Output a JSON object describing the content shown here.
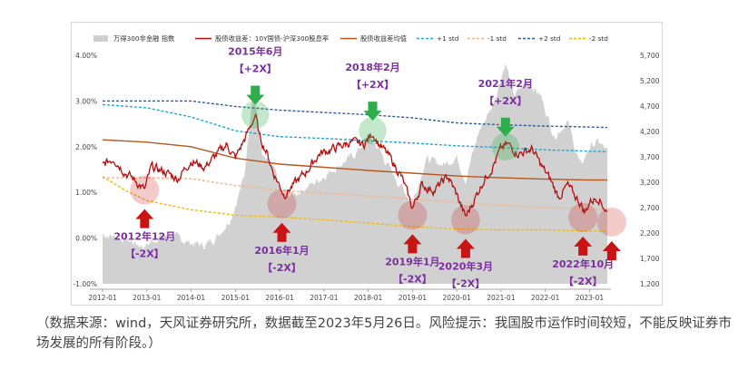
{
  "caption": "（数据来源：wind，天风证券研究所，数据截至2023年5月26日。风险提示：我国股市运作时间较短，不能反映证券市场发展的所有阶段。）",
  "colors": {
    "index_area": "#cfcfcf",
    "spread": "#b01010",
    "mean": "#b4581f",
    "plus1": "#1aa7d8",
    "minus1": "#f2b58a",
    "plus2": "#2a5f98",
    "minus2": "#f5b800",
    "annotation_text": "#7b2f9e",
    "high_marker": "#2eae4a",
    "low_marker": "#c81414"
  },
  "chart_data": {
    "type": "line",
    "legend": [
      {
        "key": "index",
        "label": "万得300非金融 指数",
        "style": "area"
      },
      {
        "key": "spread",
        "label": "股债收益差：10Y国债-沪深300股息率",
        "style": "line"
      },
      {
        "key": "mean",
        "label": "股债收益差均值",
        "style": "line"
      },
      {
        "key": "plus1",
        "label": "+1 std",
        "style": "dashed"
      },
      {
        "key": "minus1",
        "label": "-1 std",
        "style": "dashed"
      },
      {
        "key": "plus2",
        "label": "+2 std",
        "style": "dashed"
      },
      {
        "key": "minus2",
        "label": "-2 std",
        "style": "dashed"
      }
    ],
    "x_ticks": [
      "2012-01",
      "2013-01",
      "2014-01",
      "2015-01",
      "2016-01",
      "2017-01",
      "2018-01",
      "2019-01",
      "2020-01",
      "2021-01",
      "2022-01",
      "2023-01"
    ],
    "x_range": [
      "2012-01",
      "2023-05"
    ],
    "y_left": {
      "ticks": [
        "4.00%",
        "3.00%",
        "2.00%",
        "1.00%",
        "0.00%",
        "-1.00%"
      ],
      "range": [
        -1.0,
        4.0
      ]
    },
    "y_right": {
      "ticks": [
        "5,700",
        "5,200",
        "4,700",
        "4,200",
        "3,700",
        "3,200",
        "2,700",
        "2,200",
        "1,700",
        "1,200"
      ],
      "range": [
        1200,
        5700
      ]
    },
    "mean_series": [
      [
        2012.0,
        2.15
      ],
      [
        2013.0,
        2.1
      ],
      [
        2014.0,
        2.0
      ],
      [
        2015.0,
        1.75
      ],
      [
        2016.0,
        1.62
      ],
      [
        2017.0,
        1.55
      ],
      [
        2018.0,
        1.48
      ],
      [
        2019.0,
        1.42
      ],
      [
        2020.0,
        1.36
      ],
      [
        2021.0,
        1.32
      ],
      [
        2022.0,
        1.29
      ],
      [
        2023.0,
        1.27
      ],
      [
        2023.4,
        1.27
      ]
    ],
    "plus1_series": [
      [
        2012.0,
        2.92
      ],
      [
        2013.0,
        2.85
      ],
      [
        2014.0,
        2.65
      ],
      [
        2015.0,
        2.35
      ],
      [
        2016.0,
        2.22
      ],
      [
        2017.0,
        2.18
      ],
      [
        2018.0,
        2.13
      ],
      [
        2019.0,
        2.08
      ],
      [
        2020.0,
        2.02
      ],
      [
        2021.0,
        1.98
      ],
      [
        2022.0,
        1.93
      ],
      [
        2023.0,
        1.9
      ],
      [
        2023.4,
        1.89
      ]
    ],
    "plus2_series": [
      [
        2012.0,
        3.0
      ],
      [
        2013.0,
        3.0
      ],
      [
        2014.0,
        3.0
      ],
      [
        2015.0,
        2.88
      ],
      [
        2016.0,
        2.8
      ],
      [
        2017.0,
        2.75
      ],
      [
        2018.0,
        2.7
      ],
      [
        2019.0,
        2.63
      ],
      [
        2020.0,
        2.52
      ],
      [
        2021.0,
        2.48
      ],
      [
        2022.0,
        2.45
      ],
      [
        2023.0,
        2.43
      ],
      [
        2023.4,
        2.42
      ]
    ],
    "minus1_series": [
      [
        2012.0,
        1.32
      ],
      [
        2013.0,
        1.32
      ],
      [
        2014.0,
        1.3
      ],
      [
        2015.0,
        1.15
      ],
      [
        2016.0,
        1.05
      ],
      [
        2017.0,
        0.98
      ],
      [
        2018.0,
        0.92
      ],
      [
        2019.0,
        0.85
      ],
      [
        2020.0,
        0.78
      ],
      [
        2021.0,
        0.72
      ],
      [
        2022.0,
        0.67
      ],
      [
        2023.0,
        0.63
      ],
      [
        2023.4,
        0.62
      ]
    ],
    "minus2_series": [
      [
        2012.0,
        1.35
      ],
      [
        2012.5,
        1.05
      ],
      [
        2013.0,
        0.82
      ],
      [
        2014.0,
        0.62
      ],
      [
        2015.0,
        0.5
      ],
      [
        2016.0,
        0.46
      ],
      [
        2017.0,
        0.4
      ],
      [
        2018.0,
        0.33
      ],
      [
        2019.0,
        0.25
      ],
      [
        2020.0,
        0.2
      ],
      [
        2021.0,
        0.18
      ],
      [
        2022.0,
        0.18
      ],
      [
        2023.0,
        0.15
      ],
      [
        2023.4,
        0.15
      ]
    ],
    "spread_series": [
      [
        2012.0,
        1.6
      ],
      [
        2012.25,
        1.75
      ],
      [
        2012.5,
        1.45
      ],
      [
        2012.75,
        1.25
      ],
      [
        2012.95,
        1.05
      ],
      [
        2013.1,
        1.55
      ],
      [
        2013.4,
        1.45
      ],
      [
        2013.7,
        1.3
      ],
      [
        2014.0,
        1.7
      ],
      [
        2014.3,
        1.55
      ],
      [
        2014.6,
        1.85
      ],
      [
        2014.8,
        2.05
      ],
      [
        2015.0,
        1.75
      ],
      [
        2015.3,
        2.35
      ],
      [
        2015.45,
        2.7
      ],
      [
        2015.55,
        2.2
      ],
      [
        2015.7,
        1.9
      ],
      [
        2015.85,
        1.45
      ],
      [
        2016.0,
        1.15
      ],
      [
        2016.1,
        0.95
      ],
      [
        2016.3,
        1.15
      ],
      [
        2016.6,
        1.45
      ],
      [
        2016.9,
        1.85
      ],
      [
        2017.2,
        1.95
      ],
      [
        2017.6,
        2.1
      ],
      [
        2017.9,
        2.05
      ],
      [
        2018.1,
        2.3
      ],
      [
        2018.25,
        2.05
      ],
      [
        2018.5,
        1.75
      ],
      [
        2018.75,
        1.35
      ],
      [
        2019.0,
        0.65
      ],
      [
        2019.2,
        1.15
      ],
      [
        2019.5,
        1.05
      ],
      [
        2019.8,
        1.35
      ],
      [
        2020.0,
        0.95
      ],
      [
        2020.2,
        0.45
      ],
      [
        2020.4,
        0.85
      ],
      [
        2020.6,
        1.25
      ],
      [
        2020.8,
        1.55
      ],
      [
        2021.0,
        1.95
      ],
      [
        2021.15,
        2.05
      ],
      [
        2021.4,
        1.85
      ],
      [
        2021.7,
        1.95
      ],
      [
        2021.9,
        1.6
      ],
      [
        2022.1,
        1.3
      ],
      [
        2022.3,
        0.9
      ],
      [
        2022.5,
        1.15
      ],
      [
        2022.8,
        0.75
      ],
      [
        2022.9,
        0.55
      ],
      [
        2023.0,
        0.8
      ],
      [
        2023.2,
        0.9
      ],
      [
        2023.4,
        0.55
      ]
    ],
    "index_series": [
      [
        2012.0,
        2180
      ],
      [
        2012.5,
        2080
      ],
      [
        2012.95,
        1930
      ],
      [
        2013.3,
        2150
      ],
      [
        2013.7,
        2100
      ],
      [
        2014.0,
        2000
      ],
      [
        2014.3,
        1950
      ],
      [
        2014.6,
        2150
      ],
      [
        2014.9,
        2500
      ],
      [
        2015.2,
        3300
      ],
      [
        2015.4,
        5100
      ],
      [
        2015.5,
        4500
      ],
      [
        2015.6,
        3700
      ],
      [
        2015.9,
        3400
      ],
      [
        2016.05,
        2900
      ],
      [
        2016.4,
        3000
      ],
      [
        2016.8,
        3200
      ],
      [
        2017.2,
        3450
      ],
      [
        2017.7,
        3750
      ],
      [
        2018.0,
        4100
      ],
      [
        2018.2,
        3900
      ],
      [
        2018.6,
        3300
      ],
      [
        2019.0,
        2800
      ],
      [
        2019.3,
        3650
      ],
      [
        2019.7,
        3550
      ],
      [
        2020.0,
        3700
      ],
      [
        2020.2,
        3250
      ],
      [
        2020.5,
        4200
      ],
      [
        2020.8,
        4700
      ],
      [
        2021.1,
        5550
      ],
      [
        2021.3,
        4900
      ],
      [
        2021.6,
        5200
      ],
      [
        2021.9,
        4900
      ],
      [
        2022.2,
        4100
      ],
      [
        2022.5,
        4400
      ],
      [
        2022.8,
        3500
      ],
      [
        2023.0,
        3900
      ],
      [
        2023.2,
        4000
      ],
      [
        2023.4,
        3800
      ]
    ],
    "annotations": [
      {
        "kind": "high",
        "lines": [
          "2015年6月",
          "【+2X】"
        ],
        "t": 2015.45,
        "v": 2.7
      },
      {
        "kind": "high",
        "lines": [
          "2018年2月",
          "【+2X】"
        ],
        "t": 2018.1,
        "v": 2.35
      },
      {
        "kind": "high",
        "lines": [
          "2021年2月",
          "【+2X】"
        ],
        "t": 2021.1,
        "v": 2.0
      },
      {
        "kind": "low",
        "lines": [
          "2012年12月",
          "【-2X】"
        ],
        "t": 2012.95,
        "v": 1.05
      },
      {
        "kind": "low",
        "lines": [
          "2016年1月",
          "【-2X】"
        ],
        "t": 2016.05,
        "v": 0.75
      },
      {
        "kind": "low",
        "lines": [
          "2019年1月",
          "【-2X】"
        ],
        "t": 2019.0,
        "v": 0.5
      },
      {
        "kind": "low",
        "lines": [
          "2020年3月",
          "【-2X】"
        ],
        "t": 2020.2,
        "v": 0.4
      },
      {
        "kind": "low",
        "lines": [
          "2022年10月",
          "【-2X】"
        ],
        "t": 2022.85,
        "v": 0.45
      },
      {
        "kind": "low",
        "lines": [],
        "t": 2023.5,
        "v": 0.35
      }
    ]
  }
}
